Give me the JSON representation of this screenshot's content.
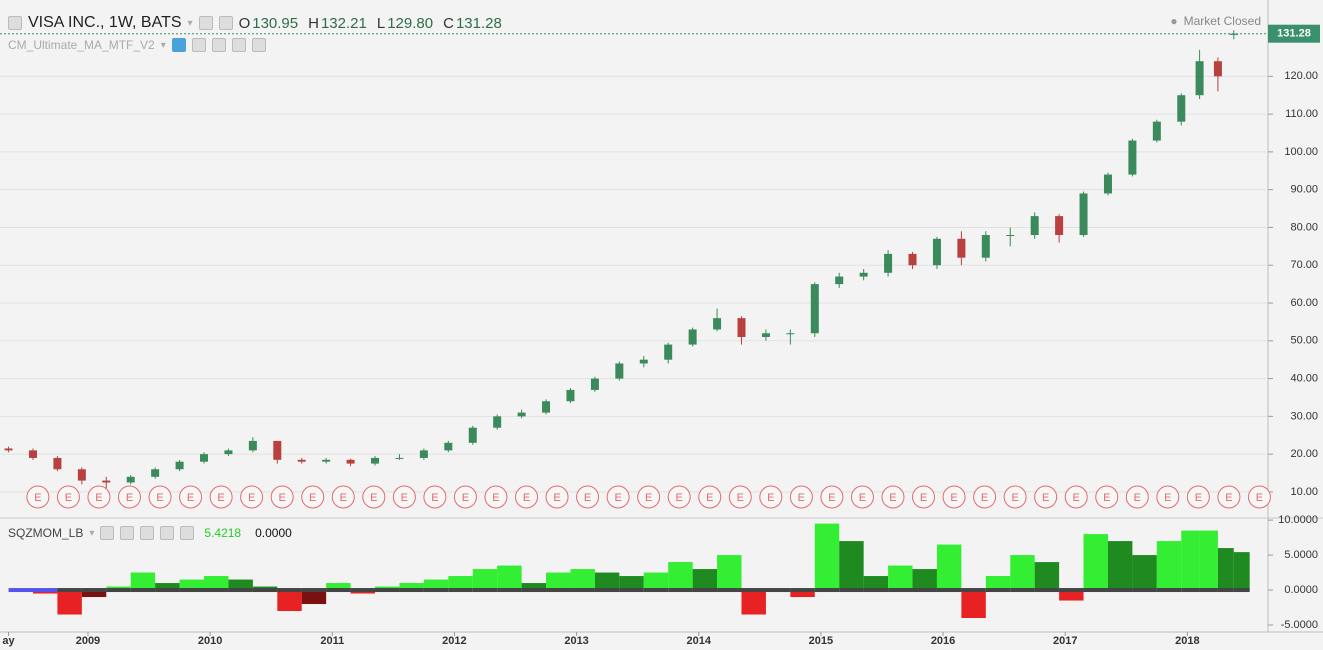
{
  "chart_data": [
    {
      "type": "candlestick",
      "title": "VISA INC., 1W, BATS",
      "overlay_name": "CM_Ultimate_MA_MTF_V2",
      "status": "Market Closed",
      "last_bar": {
        "labels": [
          "O",
          "H",
          "L",
          "C"
        ],
        "values": [
          130.95,
          132.21,
          129.8,
          131.28
        ],
        "value_labels": [
          "130.95",
          "132.21",
          "129.80",
          "131.28"
        ]
      },
      "x": [
        2008.35,
        2008.55,
        2008.75,
        2008.95,
        2009.15,
        2009.35,
        2009.55,
        2009.75,
        2009.95,
        2010.15,
        2010.35,
        2010.55,
        2010.75,
        2010.95,
        2011.15,
        2011.35,
        2011.55,
        2011.75,
        2011.95,
        2012.15,
        2012.35,
        2012.55,
        2012.75,
        2012.95,
        2013.15,
        2013.35,
        2013.55,
        2013.75,
        2013.95,
        2014.15,
        2014.35,
        2014.55,
        2014.75,
        2014.95,
        2015.15,
        2015.35,
        2015.55,
        2015.75,
        2015.95,
        2016.15,
        2016.35,
        2016.55,
        2016.75,
        2016.95,
        2017.15,
        2017.35,
        2017.55,
        2017.75,
        2017.95,
        2018.1,
        2018.25,
        2018.38
      ],
      "open": [
        21.5,
        21,
        19,
        16,
        13,
        12.5,
        14,
        16,
        18,
        20,
        21,
        23.5,
        18.5,
        18,
        18.5,
        17.5,
        19,
        19,
        21,
        23,
        27,
        30,
        31,
        34,
        37,
        40,
        44,
        45,
        49,
        53,
        56,
        51,
        52,
        52,
        65,
        67,
        68,
        73,
        70,
        77,
        72,
        78,
        78,
        83,
        78,
        89,
        94,
        103,
        108,
        115,
        124,
        130.95
      ],
      "high": [
        22,
        21.5,
        19.5,
        16.5,
        14,
        14.5,
        16.5,
        18.5,
        20.5,
        21.5,
        24.5,
        23.5,
        19,
        19,
        18.8,
        19.5,
        20,
        21.5,
        23.5,
        27.5,
        30.5,
        31.8,
        34.5,
        37.5,
        40.5,
        44.5,
        46,
        49.5,
        53.5,
        58.5,
        56.5,
        53,
        53,
        65.5,
        68,
        69,
        74,
        73.5,
        77.5,
        79,
        79,
        80,
        84,
        83.5,
        89.5,
        94.5,
        103.5,
        108.5,
        115.5,
        127,
        125,
        132.21
      ],
      "low": [
        20.5,
        18.5,
        15.5,
        12,
        11,
        12,
        13.5,
        15.5,
        17.5,
        19.5,
        20.5,
        17.5,
        17.5,
        17.5,
        16.8,
        17,
        18.5,
        18.5,
        20.5,
        22.5,
        26.5,
        29.5,
        30.5,
        33.5,
        36.5,
        39.5,
        43,
        44,
        48.5,
        52.5,
        49,
        50,
        49,
        51,
        64,
        66,
        67,
        69,
        69,
        70,
        71,
        75,
        77,
        76,
        77.5,
        88.5,
        93.5,
        102.5,
        107,
        114,
        116,
        129.8
      ],
      "close": [
        21,
        19,
        16,
        13,
        12.5,
        14,
        16,
        18,
        20,
        21,
        23.5,
        18.5,
        18,
        18.5,
        17.5,
        19,
        19,
        21,
        23,
        27,
        30,
        31,
        34,
        37,
        40,
        44,
        45,
        49,
        53,
        56,
        51,
        52,
        52,
        65,
        67,
        68,
        73,
        70,
        77,
        72,
        78,
        78,
        83,
        78,
        89,
        94,
        103,
        108,
        115,
        124,
        120,
        131.28
      ],
      "up_color": "#3a8a5c",
      "down_color": "#b8403f",
      "last_color": "#3a8f6c",
      "xlim": [
        2008.28,
        2018.66
      ],
      "ylim": [
        3.1,
        140.2
      ],
      "yticks": [
        {
          "value": 10,
          "label": "10.00"
        },
        {
          "value": 20,
          "label": "20.00"
        },
        {
          "value": 30,
          "label": "30.00"
        },
        {
          "value": 40,
          "label": "40.00"
        },
        {
          "value": 50,
          "label": "50.00"
        },
        {
          "value": 60,
          "label": "60.00"
        },
        {
          "value": 70,
          "label": "70.00"
        },
        {
          "value": 80,
          "label": "80.00"
        },
        {
          "value": 90,
          "label": "90.00"
        },
        {
          "value": 100,
          "label": "100.00"
        },
        {
          "value": 110,
          "label": "110.00"
        },
        {
          "value": 120,
          "label": "120.00"
        }
      ],
      "grid": true,
      "earnings": {
        "label": "E",
        "color": "#e36b6b",
        "x": [
          2008.59,
          2008.84,
          2009.09,
          2009.34,
          2009.59,
          2009.84,
          2010.09,
          2010.34,
          2010.59,
          2010.84,
          2011.09,
          2011.34,
          2011.59,
          2011.84,
          2012.09,
          2012.34,
          2012.59,
          2012.84,
          2013.09,
          2013.34,
          2013.59,
          2013.84,
          2014.09,
          2014.34,
          2014.59,
          2014.84,
          2015.09,
          2015.34,
          2015.59,
          2015.84,
          2016.09,
          2016.34,
          2016.59,
          2016.84,
          2017.09,
          2017.34,
          2017.59,
          2017.84,
          2018.09,
          2018.34,
          2018.59
        ]
      }
    },
    {
      "type": "histogram",
      "title": "SQZMOM_LB",
      "legend_values": [
        5.4218,
        {
          "value": 0,
          "label": "0.0000"
        }
      ],
      "legend_colors": [
        "#22cc22",
        "#111111"
      ],
      "x": [
        2008.35,
        2008.55,
        2008.75,
        2008.95,
        2009.15,
        2009.35,
        2009.55,
        2009.75,
        2009.95,
        2010.15,
        2010.35,
        2010.55,
        2010.75,
        2010.95,
        2011.15,
        2011.35,
        2011.55,
        2011.75,
        2011.95,
        2012.15,
        2012.35,
        2012.55,
        2012.75,
        2012.95,
        2013.15,
        2013.35,
        2013.55,
        2013.75,
        2013.95,
        2014.15,
        2014.35,
        2014.55,
        2014.75,
        2014.95,
        2015.15,
        2015.35,
        2015.55,
        2015.75,
        2015.95,
        2016.15,
        2016.35,
        2016.55,
        2016.75,
        2016.95,
        2017.15,
        2017.35,
        2017.55,
        2017.75,
        2017.95,
        2018.1,
        2018.25,
        2018.38
      ],
      "values": [
        0,
        -0.5,
        -3.5,
        -1,
        0.5,
        2.5,
        1,
        1.5,
        2,
        1.5,
        0.5,
        -3,
        -2,
        1,
        -0.5,
        0.5,
        1,
        1.5,
        2,
        3,
        3.5,
        1,
        2.5,
        3,
        2.5,
        2,
        2.5,
        4,
        3,
        5,
        -3.5,
        0,
        -1,
        9.5,
        7,
        2,
        3.5,
        3,
        6.5,
        -4,
        2,
        5,
        4,
        -1.5,
        8,
        7,
        5,
        7,
        8.5,
        8.5,
        6,
        5.4218
      ],
      "colors": [
        "#33ee33",
        "#1f8a1f",
        "#e82222",
        "#7a1010"
      ],
      "xlim": [
        2008.28,
        2018.66
      ],
      "ylim": [
        -6,
        10.3
      ],
      "yticks": [
        {
          "value": 10,
          "label": "10.0000"
        },
        {
          "value": 5,
          "label": "5.0000"
        },
        {
          "value": 0,
          "label": "0.0000"
        },
        {
          "value": -5,
          "label": "-5.0000"
        }
      ],
      "xticks": [
        {
          "value": 2008.35,
          "label": "ay"
        },
        2009,
        2010,
        2011,
        2012,
        2013,
        2014,
        2015,
        2016,
        2017,
        2018
      ],
      "grid": false
    }
  ]
}
